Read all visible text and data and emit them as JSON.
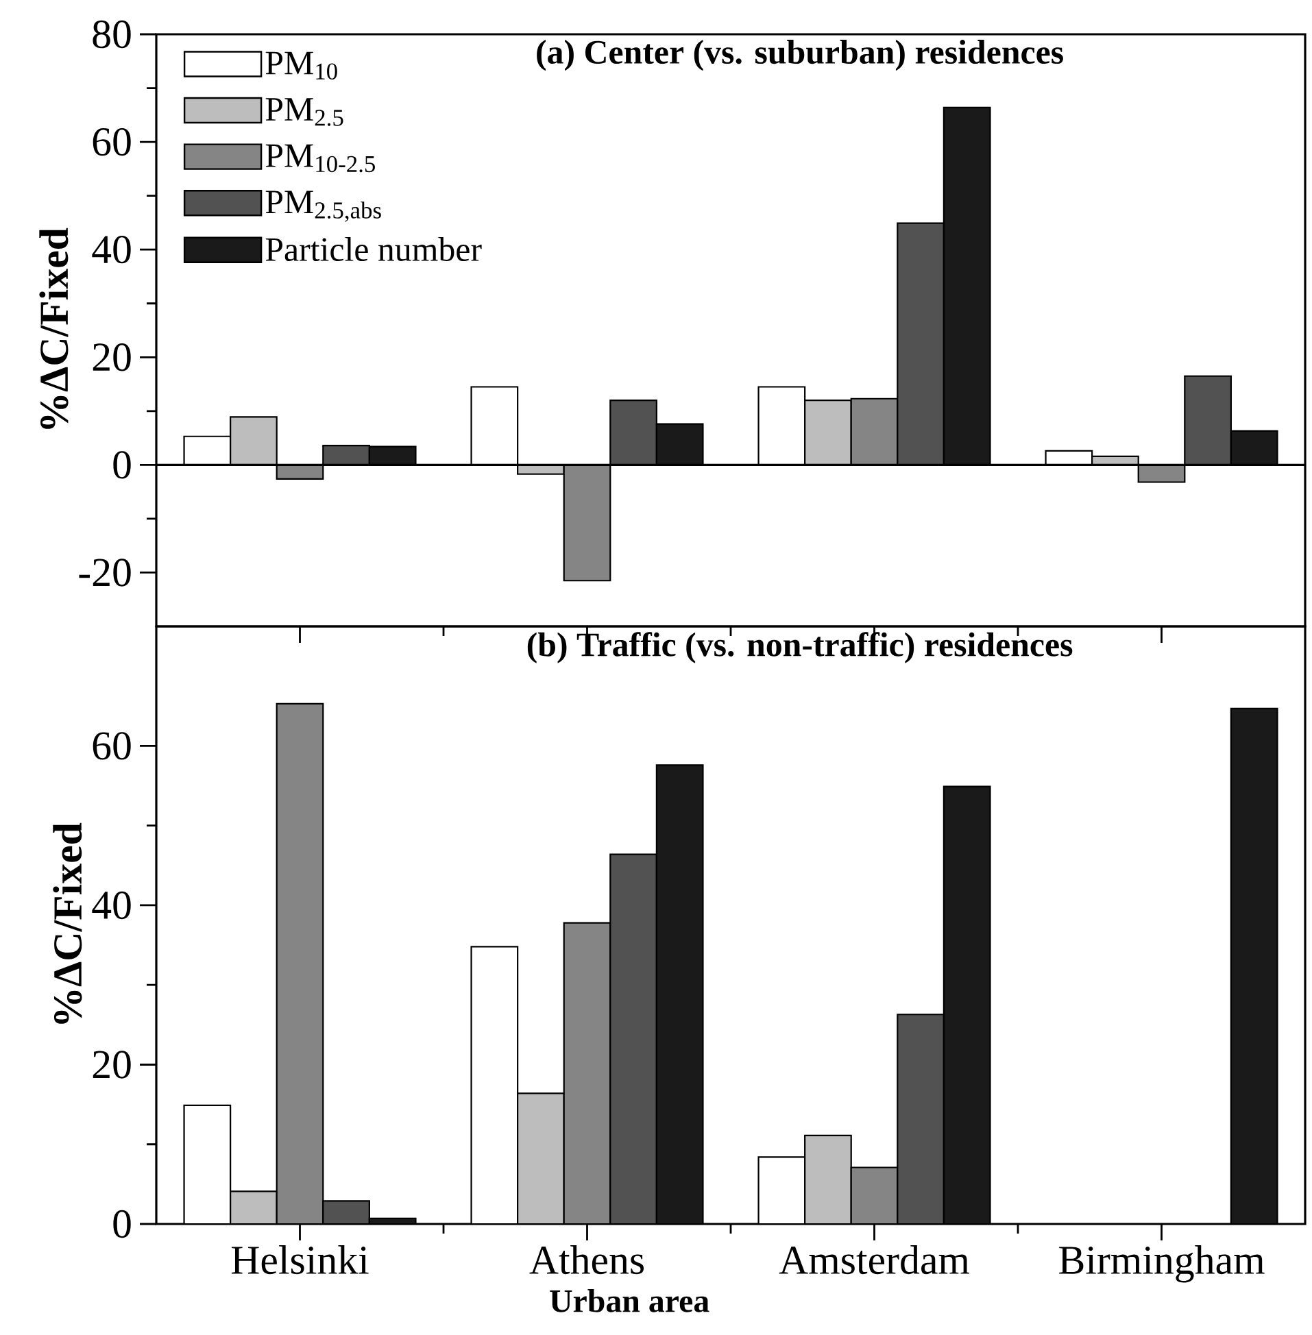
{
  "chart_data": [
    {
      "type": "bar",
      "title": "(a) Center (vs. suburban) residences",
      "ylabel": "%ΔC/Fixed",
      "categories": [
        null,
        null,
        null,
        null
      ],
      "series": [
        {
          "name": "PM$_{10}$",
          "color": "#ffffff",
          "values": [
            5.3,
            14.5,
            14.5,
            2.6
          ]
        },
        {
          "name": "PM$_{2.5}$",
          "color": "#bdbdbd",
          "values": [
            8.9,
            -1.7,
            12,
            1.6
          ]
        },
        {
          "name": "PM$_{10-2.5}$",
          "color": "#858585",
          "values": [
            -2.6,
            -21.5,
            12.3,
            -3.2
          ]
        },
        {
          "name": "PM$_{2.5,abs}$",
          "color": "#525252",
          "values": [
            3.6,
            12,
            44.9,
            16.5
          ]
        },
        {
          "name": "Particle number",
          "color": "#1a1a1a",
          "values": [
            3.4,
            7.6,
            66.4,
            6.3
          ]
        }
      ],
      "ylim": [
        -30,
        80
      ],
      "yticks": [
        -20,
        0,
        20,
        40,
        60,
        80
      ],
      "legend": "top left",
      "tick_labels": "y",
      "ref_lines": [
        {
          "axis": "y",
          "value": 0
        }
      ]
    },
    {
      "type": "bar",
      "title": "(b) Traffic (vs. non-traffic) residences",
      "ylabel": "%ΔC/Fixed",
      "xlabel": "Urban area",
      "categories": [
        "Helsinki",
        "Athens",
        "Amsterdam",
        "Birmingham"
      ],
      "series": [
        {
          "color": "#ffffff",
          "values": [
            14.9,
            34.8,
            8.4,
            null
          ]
        },
        {
          "color": "#bdbdbd",
          "values": [
            4.1,
            16.4,
            11.1,
            null
          ]
        },
        {
          "color": "#858585",
          "values": [
            65.3,
            37.8,
            7.1,
            null
          ]
        },
        {
          "color": "#525252",
          "values": [
            2.9,
            46.4,
            26.3,
            null
          ]
        },
        {
          "color": "#1a1a1a",
          "values": [
            0.7,
            57.6,
            54.9,
            64.7
          ]
        }
      ],
      "ylim": [
        0,
        75
      ],
      "yticks": [
        0,
        20,
        40,
        60
      ]
    }
  ]
}
